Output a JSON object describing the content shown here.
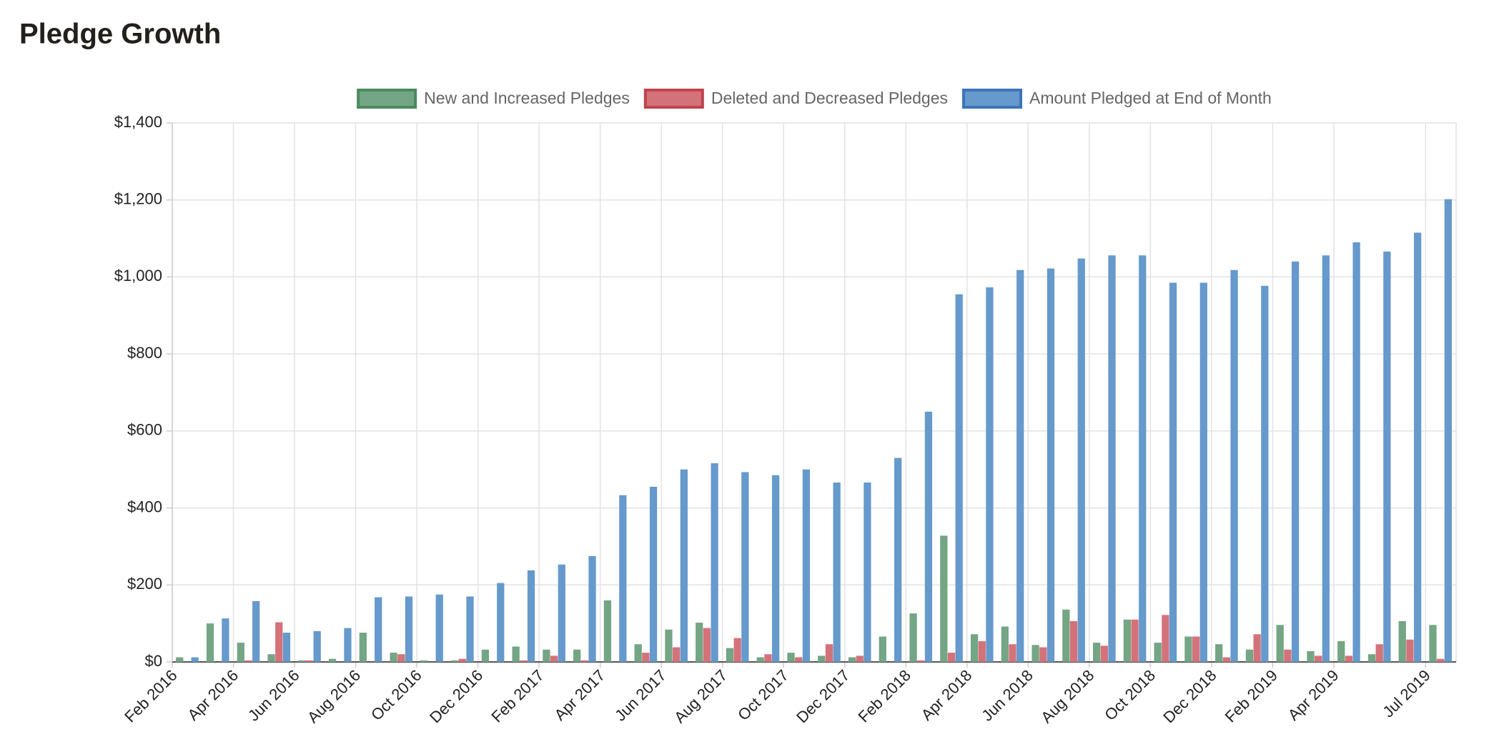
{
  "chart_data": {
    "type": "bar",
    "title": "Pledge Growth",
    "categories": [
      "Feb 2016",
      null,
      "Apr 2016",
      null,
      "Jun 2016",
      null,
      "Aug 2016",
      null,
      "Oct 2016",
      null,
      "Dec 2016",
      null,
      "Feb 2017",
      null,
      "Apr 2017",
      null,
      "Jun 2017",
      null,
      "Aug 2017",
      null,
      "Oct 2017",
      null,
      "Dec 2017",
      null,
      "Feb 2018",
      null,
      "Apr 2018",
      null,
      "Jun 2018",
      null,
      "Aug 2018",
      null,
      "Oct 2018",
      null,
      "Dec 2018",
      null,
      "Feb 2019",
      null,
      "Apr 2019",
      null,
      null,
      "Jul 2019"
    ],
    "series": [
      {
        "name": "New and Increased Pledges",
        "color": "#74a585",
        "border": "#4a8a5e",
        "values": [
          12,
          100,
          50,
          20,
          4,
          8,
          76,
          24,
          4,
          4,
          32,
          40,
          32,
          32,
          160,
          46,
          84,
          102,
          36,
          12,
          24,
          16,
          12,
          66,
          126,
          328,
          72,
          92,
          44,
          136,
          50,
          110,
          50,
          66,
          46,
          32,
          96,
          28,
          54,
          20,
          106,
          96
        ]
      },
      {
        "name": "Deleted and Decreased Pledges",
        "color": "#d4727a",
        "border": "#c0434d",
        "values": [
          0,
          0,
          4,
          103,
          4,
          0,
          0,
          20,
          0,
          8,
          0,
          4,
          16,
          4,
          0,
          24,
          38,
          88,
          62,
          20,
          12,
          46,
          16,
          0,
          4,
          24,
          54,
          46,
          38,
          106,
          42,
          110,
          122,
          66,
          12,
          72,
          32,
          16,
          16,
          46,
          58,
          8
        ]
      },
      {
        "name": "Amount Pledged at End of Month",
        "color": "#6699cc",
        "border": "#3d74b9",
        "values": [
          12,
          113,
          158,
          76,
          80,
          88,
          168,
          170,
          175,
          170,
          205,
          238,
          253,
          275,
          433,
          455,
          500,
          516,
          493,
          485,
          500,
          466,
          466,
          530,
          650,
          955,
          973,
          1018,
          1022,
          1048,
          1056,
          1056,
          985,
          985,
          1018,
          977,
          1040,
          1056,
          1090,
          1066,
          1115,
          1202
        ]
      }
    ],
    "ylim": [
      0,
      1400
    ],
    "yticks": [
      {
        "value": 0,
        "label": "$0"
      },
      {
        "value": 200,
        "label": "$200"
      },
      {
        "value": 400,
        "label": "$400"
      },
      {
        "value": 600,
        "label": "$600"
      },
      {
        "value": 800,
        "label": "$800"
      },
      {
        "value": 1000,
        "label": "$1,000"
      },
      {
        "value": 1200,
        "label": "$1,200"
      },
      {
        "value": 1400,
        "label": "$1,400"
      }
    ],
    "grid": true,
    "legend": "top"
  }
}
